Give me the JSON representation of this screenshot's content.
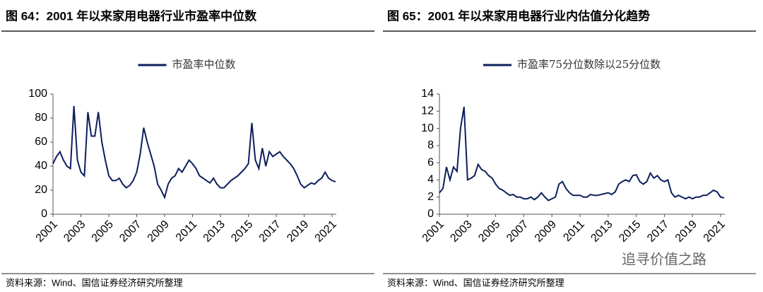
{
  "chart_data": [
    {
      "type": "line",
      "title": "图 64：2001 年以来家用电器行业市盈率中位数",
      "source": "资料来源：Wind、国信证券经济研究所整理",
      "xlim": [
        2001,
        2021.3
      ],
      "xticks": [
        2001,
        2003,
        2005,
        2007,
        2009,
        2011,
        2013,
        2015,
        2017,
        2019,
        2021
      ],
      "ylim": [
        0,
        100
      ],
      "yticks": [
        0,
        20,
        40,
        60,
        80,
        100
      ],
      "series": [
        {
          "name": "市盈率中位数",
          "color": "#0d1f5c",
          "values": [
            42,
            48,
            52,
            45,
            40,
            38,
            90,
            45,
            35,
            32,
            85,
            65,
            65,
            85,
            60,
            45,
            32,
            28,
            28,
            30,
            25,
            22,
            24,
            28,
            35,
            50,
            72,
            60,
            50,
            40,
            25,
            20,
            14,
            25,
            30,
            32,
            38,
            35,
            40,
            45,
            42,
            38,
            32,
            30,
            28,
            26,
            30,
            25,
            22,
            22,
            25,
            28,
            30,
            32,
            35,
            38,
            42,
            76,
            45,
            38,
            55,
            40,
            52,
            48,
            50,
            52,
            48,
            45,
            42,
            38,
            32,
            25,
            22,
            24,
            26,
            25,
            28,
            30,
            35,
            30,
            28,
            27
          ]
        }
      ]
    },
    {
      "type": "line",
      "title": "图 65：2001 年以来家用电器行业内估值分化趋势",
      "source": "资料来源：Wind、国信证券经济研究所整理",
      "watermark": "追寻价值之路",
      "xlim": [
        2001,
        2021.3
      ],
      "xticks": [
        2001,
        2003,
        2005,
        2007,
        2009,
        2011,
        2013,
        2015,
        2017,
        2019,
        2021
      ],
      "ylim": [
        0,
        14
      ],
      "yticks": [
        0,
        2,
        4,
        6,
        8,
        10,
        12,
        14
      ],
      "series": [
        {
          "name": "市盈率75分位数除以25分位数",
          "color": "#0d1f5c",
          "values": [
            2.5,
            3,
            5.5,
            4,
            5.5,
            5,
            10,
            12.5,
            4,
            4.2,
            4.5,
            5.8,
            5.2,
            5,
            4.5,
            4.2,
            3.5,
            3,
            2.8,
            2.5,
            2.2,
            2.3,
            2,
            2,
            1.8,
            1.8,
            2,
            1.7,
            2,
            2.5,
            2,
            1.6,
            1.8,
            2,
            3.5,
            3.8,
            3,
            2.5,
            2.2,
            2.2,
            2.2,
            2,
            2,
            2.3,
            2.2,
            2.2,
            2.3,
            2.4,
            2.5,
            2.3,
            2.6,
            3.5,
            3.8,
            4,
            3.8,
            4.5,
            4.6,
            3.8,
            3.5,
            3.8,
            4.8,
            4.2,
            4.5,
            4,
            3.8,
            4,
            2.5,
            2,
            2.2,
            2,
            1.8,
            2,
            1.8,
            2,
            2,
            2.2,
            2.2,
            2.5,
            2.8,
            2.6,
            2,
            1.9
          ]
        }
      ]
    }
  ]
}
